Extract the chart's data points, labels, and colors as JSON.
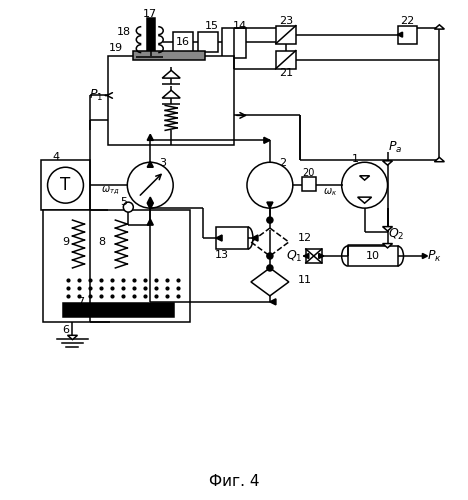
{
  "title": "Фиг. 4",
  "bg": "#ffffff",
  "lc": "#000000",
  "lw": 1.1,
  "fw": 4.68,
  "fh": 5.0,
  "dpi": 100
}
